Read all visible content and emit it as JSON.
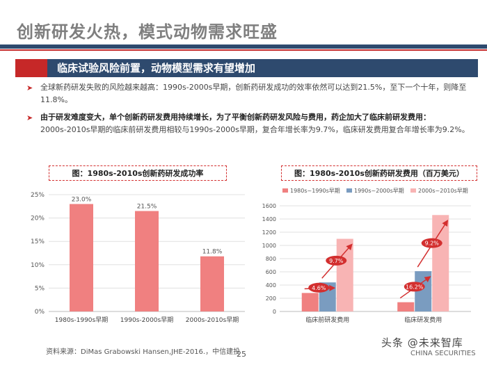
{
  "title": "创新研发火热，模式动物需求旺盛",
  "banner": "临床试验风险前置，动物模型需求有望增加",
  "bullets": [
    {
      "text": "全球新药研发失败的风险越来越高：1990s-2000s早期，创新药研发成功的效率依然可以达到21.5%，至下一个十年，则降至11.8%。"
    },
    {
      "bold": "由于研发难度变大，单个创新药研发费用持续增长，为了平衡创新药研发风险与费用，药企加大了临床前研发费用：",
      "text": "2000s-2010s早期的临床前研发费用相较与1990s-2000s早期，复合年增长率为9.7%，临床研发费用复合年增长率为9.2%。"
    }
  ],
  "chart_data": [
    {
      "type": "bar",
      "title": "图：1980s-2010s创新药研发成功率",
      "categories": [
        "1980s-1990s早期",
        "1990s-2000s早期",
        "2000s-2010s早期"
      ],
      "values": [
        23.0,
        21.5,
        11.8
      ],
      "value_labels": [
        "23.0%",
        "21.5%",
        "11.8%"
      ],
      "ylim": [
        0,
        25
      ],
      "yticks": [
        "0%",
        "5%",
        "10%",
        "15%",
        "20%",
        "25%"
      ],
      "ytick_values": [
        0,
        5,
        10,
        15,
        20,
        25
      ],
      "color": "#f08080",
      "grid": true
    },
    {
      "type": "bar",
      "title": "图：1980s-2010s创新药研发费用（百万美元）",
      "categories": [
        "临床前研发费用",
        "临床研发费用"
      ],
      "series": [
        {
          "name": "1980s~1990s早期",
          "values": [
            280,
            140
          ],
          "color": "#f08080"
        },
        {
          "name": "1990s~2000s早期",
          "values": [
            440,
            610
          ],
          "color": "#7a9cc0"
        },
        {
          "name": "2000s~2010s早期",
          "values": [
            1100,
            1460
          ],
          "color": "#f8b4b4"
        }
      ],
      "ylim": [
        0,
        1600
      ],
      "yticks": [
        "0",
        "200",
        "400",
        "600",
        "800",
        "1000",
        "1200",
        "1400",
        "1600"
      ],
      "ytick_values": [
        0,
        200,
        400,
        600,
        800,
        1000,
        1200,
        1400,
        1600
      ],
      "growth_labels": [
        {
          "text": "4.6%",
          "category": "临床前研发费用"
        },
        {
          "text": "9.7%",
          "category": "临床前研发费用"
        },
        {
          "text": "16.2%",
          "category": "临床研发费用"
        },
        {
          "text": "9.2%",
          "category": "临床研发费用"
        }
      ],
      "legend": "top",
      "grid": true
    }
  ],
  "source": "资料来源：DiMas Grabowski Hansen,JHE-2016.，中信建投",
  "page_number": "25",
  "watermark": "头条 @未来智库",
  "watermark_sub": "CHINA SECURITIES",
  "colors": {
    "navy": "#2e4a6e",
    "red": "#c62828",
    "bar_red": "#f08080",
    "bar_blue": "#7a9cc0",
    "bar_pink": "#f8b4b4"
  }
}
